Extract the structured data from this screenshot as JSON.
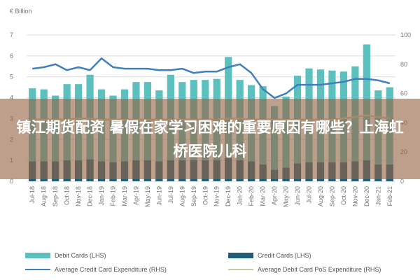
{
  "banner": {
    "text": "镇江期货配资 暑假在家学习困难的重要原因有哪些？上海虹桥医院儿科"
  },
  "chart_data": {
    "type": "bar",
    "title": "",
    "left_axis_label": "€ Billion",
    "left_ylim": [
      0,
      7
    ],
    "left_ticks": [
      0,
      1,
      2,
      3,
      4,
      5,
      6,
      7
    ],
    "right_ylim": [
      0,
      100
    ],
    "right_ticks": [
      0,
      20,
      40,
      60,
      80,
      100
    ],
    "grid": true,
    "legend_position": "bottom",
    "categories": [
      "Jul-18",
      "Aug-18",
      "Sep-18",
      "Oct-18",
      "Nov-18",
      "Dec-18",
      "Jan-19",
      "Feb-19",
      "Mar-19",
      "Apr-19",
      "May-19",
      "Jun-19",
      "Jul-19",
      "Aug-19",
      "Sep-19",
      "Oct-19",
      "Nov-19",
      "Dec-19",
      "Jan-20",
      "Feb-20",
      "Mar-20",
      "Apr-20",
      "May-20",
      "Jun-20",
      "Jul-20",
      "Aug-20",
      "Sep-20",
      "Oct-20",
      "Nov-20",
      "Dec-20",
      "Jan-21",
      "Feb-21"
    ],
    "tick_labels": [
      "Jul-18",
      "",
      "Sep-18",
      "",
      "Nov-18",
      "",
      "Jan-19",
      "",
      "Mar-19",
      "",
      "May-19",
      "",
      "Jul-19",
      "",
      "Sep-19",
      "",
      "Nov-19",
      "",
      "Jan-20",
      "",
      "Mar-20",
      "",
      "May-20",
      "",
      "Jul-20",
      "",
      "Sep-20",
      "",
      "Nov-20",
      "",
      "Jan-21",
      ""
    ],
    "tick_labels_alt": [
      "",
      "Aug-18",
      "",
      "Oct-18",
      "",
      "Dec-18",
      "",
      "Feb-19",
      "",
      "Apr-19",
      "",
      "Jun-19",
      "",
      "Aug-19",
      "",
      "Oct-19",
      "",
      "Dec-19",
      "",
      "Feb-20",
      "",
      "Apr-20",
      "",
      "Jun-20",
      "",
      "Aug-20",
      "",
      "Oct-20",
      "",
      "Dec-20",
      "",
      "Feb-21"
    ],
    "series": [
      {
        "name": "Debit Cards (LHS)",
        "axis": "left",
        "kind": "bar",
        "color": "#5bc0be",
        "values": [
          4.45,
          4.4,
          4.1,
          4.65,
          4.65,
          5.1,
          4.4,
          4.1,
          4.4,
          4.75,
          4.75,
          4.35,
          5.1,
          4.75,
          4.85,
          4.85,
          4.9,
          5.95,
          4.85,
          4.6,
          4.55,
          3.6,
          4.05,
          5.05,
          5.4,
          5.35,
          5.3,
          5.25,
          5.5,
          6.55,
          4.35,
          4.5
        ]
      },
      {
        "name": "Credit Cards (LHS)",
        "axis": "left",
        "kind": "bar",
        "color": "#1f5f7a",
        "values": [
          0.95,
          0.95,
          0.95,
          1.0,
          1.0,
          1.05,
          0.95,
          0.9,
          0.95,
          1.0,
          1.0,
          0.95,
          1.0,
          1.0,
          1.0,
          1.0,
          1.0,
          1.1,
          1.0,
          0.95,
          0.8,
          0.55,
          0.65,
          0.85,
          0.9,
          0.9,
          0.9,
          0.9,
          0.95,
          1.0,
          0.8,
          0.8
        ]
      },
      {
        "name": "Average Credit Card Expenditure (RHS)",
        "axis": "right",
        "kind": "line",
        "color": "#3f7fc0",
        "values": [
          77,
          78,
          80,
          76,
          78,
          76,
          84,
          78,
          77,
          77,
          77,
          76,
          76,
          77,
          74,
          75,
          75,
          78,
          80,
          74,
          63,
          57,
          60,
          66,
          66,
          66,
          67,
          68,
          70,
          70,
          69,
          67
        ]
      },
      {
        "name": "Average Debit Card PoS Expenditure (RHS)",
        "axis": "right",
        "kind": "line",
        "color": "#c9c7a8",
        "values": [
          42,
          42,
          42,
          42,
          43,
          43,
          42,
          42,
          42,
          42,
          42,
          42,
          42,
          42,
          42,
          42,
          42,
          43,
          43,
          42,
          42,
          42,
          42,
          42,
          42,
          42,
          42,
          43,
          44,
          45,
          44,
          43
        ]
      }
    ]
  }
}
